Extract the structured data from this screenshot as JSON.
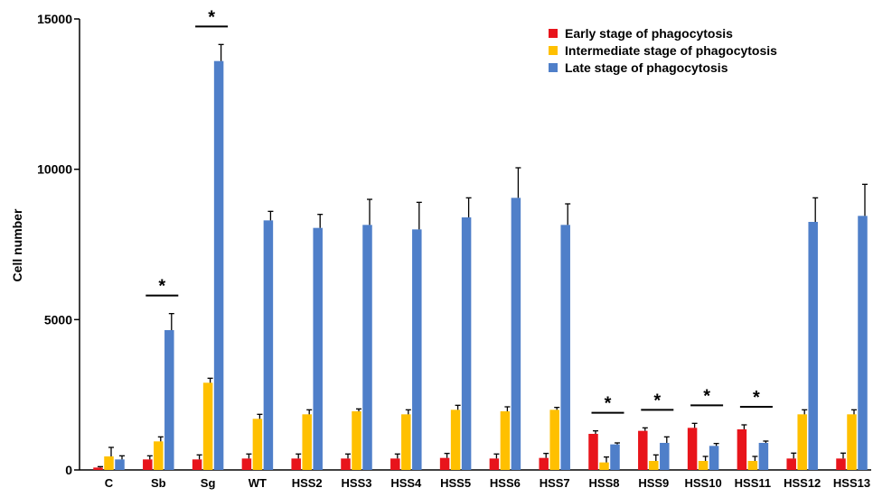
{
  "chart_data": {
    "type": "bar",
    "title": "",
    "xlabel": "",
    "ylabel": "Cell number",
    "ylim": [
      0,
      15000
    ],
    "yticks": [
      0,
      5000,
      10000,
      15000
    ],
    "legend_position": "top-right",
    "grid": false,
    "categories": [
      "C",
      "Sb",
      "Sg",
      "WT",
      "HSS2",
      "HSS3",
      "HSS4",
      "HSS5",
      "HSS6",
      "HSS7",
      "HSS8",
      "HSS9",
      "HSS10",
      "HSS11",
      "HSS12",
      "HSS13"
    ],
    "series": [
      {
        "name": "Early stage of phagocytosis",
        "color": "#e8141b",
        "values": [
          80,
          350,
          350,
          380,
          380,
          380,
          380,
          400,
          380,
          400,
          1200,
          1300,
          1400,
          1350,
          380,
          380
        ],
        "errors": [
          30,
          120,
          150,
          150,
          150,
          150,
          150,
          150,
          150,
          150,
          100,
          100,
          150,
          150,
          180,
          180
        ]
      },
      {
        "name": "Intermediate stage of phagocytosis",
        "color": "#ffc000",
        "values": [
          450,
          950,
          2900,
          1700,
          1850,
          1950,
          1850,
          2000,
          1950,
          2000,
          250,
          300,
          300,
          300,
          1850,
          1850
        ],
        "errors": [
          300,
          150,
          150,
          150,
          150,
          80,
          150,
          150,
          150,
          80,
          180,
          200,
          150,
          150,
          150,
          150
        ]
      },
      {
        "name": "Late stage of phagocytosis",
        "color": "#4f7fc9",
        "values": [
          350,
          4650,
          13600,
          8300,
          8050,
          8150,
          8000,
          8400,
          9050,
          8150,
          850,
          900,
          800,
          900,
          8250,
          8450
        ],
        "errors": [
          120,
          550,
          550,
          300,
          450,
          850,
          900,
          650,
          1000,
          700,
          50,
          200,
          80,
          60,
          800,
          1050
        ]
      }
    ],
    "annotations": [
      {
        "text": "*",
        "from_category": "Sb",
        "to_category": "Sb"
      },
      {
        "text": "*",
        "from_category": "Sg",
        "to_category": "Sg"
      },
      {
        "text": "*",
        "from_category": "HSS8",
        "to_category": "HSS8"
      },
      {
        "text": "*",
        "from_category": "HSS9",
        "to_category": "HSS9"
      },
      {
        "text": "*",
        "from_category": "HSS10",
        "to_category": "HSS10"
      },
      {
        "text": "*",
        "from_category": "HSS11",
        "to_category": "HSS11"
      }
    ]
  }
}
